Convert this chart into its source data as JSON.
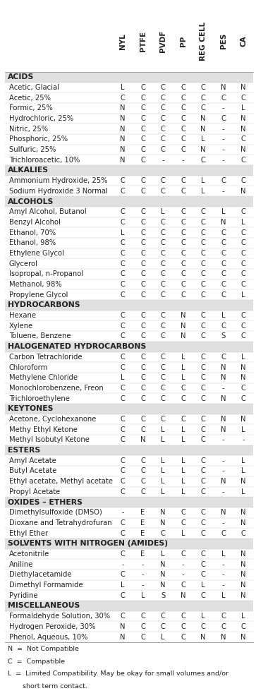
{
  "headers": [
    "NYL",
    "PTFE",
    "PVDF",
    "PP",
    "REG CELL",
    "PES",
    "CA"
  ],
  "sections": [
    {
      "title": "ACIDS",
      "rows": [
        [
          "Acetic, Glacial",
          "L",
          "C",
          "C",
          "C",
          "C",
          "N",
          "N"
        ],
        [
          "Acetic, 25%",
          "C",
          "C",
          "C",
          "C",
          "C",
          "C",
          "C"
        ],
        [
          "Formic, 25%",
          "N",
          "C",
          "C",
          "C",
          "C",
          "-",
          "L"
        ],
        [
          "Hydrochloric, 25%",
          "N",
          "C",
          "C",
          "C",
          "N",
          "C",
          "N"
        ],
        [
          "Nitric, 25%",
          "N",
          "C",
          "C",
          "C",
          "N",
          "-",
          "N"
        ],
        [
          "Phosphoric, 25%",
          "N",
          "C",
          "C",
          "C",
          "L",
          "-",
          "C"
        ],
        [
          "Sulfuric, 25%",
          "N",
          "C",
          "C",
          "C",
          "N",
          "-",
          "N"
        ],
        [
          "Trichloroacetic, 10%",
          "N",
          "C",
          "-",
          "-",
          "C",
          "-",
          "C"
        ]
      ]
    },
    {
      "title": "ALKALIES",
      "rows": [
        [
          "Ammonium Hydroxide, 25%",
          "C",
          "C",
          "C",
          "C",
          "L",
          "C",
          "C"
        ],
        [
          "Sodium Hydroxide 3 Normal",
          "C",
          "C",
          "C",
          "C",
          "L",
          "-",
          "N"
        ]
      ]
    },
    {
      "title": "ALCOHOLS",
      "rows": [
        [
          "Amyl Alcohol, Butanol",
          "C",
          "C",
          "L",
          "C",
          "C",
          "L",
          "C"
        ],
        [
          "Benzyl Alcohol",
          "C",
          "C",
          "C",
          "C",
          "C",
          "N",
          "L"
        ],
        [
          "Ethanol, 70%",
          "L",
          "C",
          "C",
          "C",
          "C",
          "C",
          "C"
        ],
        [
          "Ethanol, 98%",
          "C",
          "C",
          "C",
          "C",
          "C",
          "C",
          "C"
        ],
        [
          "Ethylene Glycol",
          "C",
          "C",
          "C",
          "C",
          "C",
          "C",
          "C"
        ],
        [
          "Glycerol",
          "C",
          "C",
          "C",
          "C",
          "C",
          "C",
          "C"
        ],
        [
          "Isopropal, n-Propanol",
          "C",
          "C",
          "C",
          "C",
          "C",
          "C",
          "C"
        ],
        [
          "Methanol, 98%",
          "C",
          "C",
          "C",
          "C",
          "C",
          "C",
          "C"
        ],
        [
          "Propylene Glycol",
          "C",
          "C",
          "C",
          "C",
          "C",
          "C",
          "L"
        ]
      ]
    },
    {
      "title": "HYDROCARBONS",
      "rows": [
        [
          "Hexane",
          "C",
          "C",
          "C",
          "N",
          "C",
          "L",
          "C"
        ],
        [
          "Xylene",
          "C",
          "C",
          "C",
          "N",
          "C",
          "C",
          "C"
        ],
        [
          "Toluene, Benzene",
          "C",
          "C",
          "C",
          "N",
          "C",
          "S",
          "C"
        ]
      ]
    },
    {
      "title": "HALOGENATED HYDROCARBONS",
      "rows": [
        [
          "Carbon Tetrachloride",
          "C",
          "C",
          "C",
          "L",
          "C",
          "C",
          "L"
        ],
        [
          "Chloroform",
          "C",
          "C",
          "C",
          "L",
          "C",
          "N",
          "N"
        ],
        [
          "Methylene Chloride",
          "L",
          "C",
          "C",
          "L",
          "C",
          "N",
          "N"
        ],
        [
          "Monochlorobenzene, Freon",
          "C",
          "C",
          "C",
          "C",
          "C",
          "-",
          "C"
        ],
        [
          "Trichloroethylene",
          "C",
          "C",
          "C",
          "C",
          "C",
          "N",
          "C"
        ]
      ]
    },
    {
      "title": "KEYTONES",
      "rows": [
        [
          "Acetone, Cyclohexanone",
          "C",
          "C",
          "C",
          "C",
          "C",
          "N",
          "N"
        ],
        [
          "Methy Ethyl Ketone",
          "C",
          "C",
          "L",
          "L",
          "C",
          "N",
          "L"
        ],
        [
          "Methyl Isobutyl Ketone",
          "C",
          "N",
          "L",
          "L",
          "C",
          "-",
          "-"
        ]
      ]
    },
    {
      "title": "ESTERS",
      "rows": [
        [
          "Amyl Acetate",
          "C",
          "C",
          "L",
          "L",
          "C",
          "-",
          "L"
        ],
        [
          "Butyl Acetate",
          "C",
          "C",
          "L",
          "L",
          "C",
          "-",
          "L"
        ],
        [
          "Ethyl acetate, Methyl acetate",
          "C",
          "C",
          "L",
          "L",
          "C",
          "N",
          "N"
        ],
        [
          "Propyl Acetate",
          "C",
          "C",
          "L",
          "L",
          "C",
          "-",
          "L"
        ]
      ]
    },
    {
      "title": "OXIDES – ETHERS",
      "rows": [
        [
          "Dimethylsulfoxide (DMSO)",
          "-",
          "E",
          "N",
          "C",
          "C",
          "N",
          "N"
        ],
        [
          "Dioxane and Tetrahydrofuran",
          "C",
          "E",
          "N",
          "C",
          "C",
          "-",
          "N"
        ],
        [
          "Ethyl Ether",
          "C",
          "E",
          "C",
          "L",
          "C",
          "C",
          "C"
        ]
      ]
    },
    {
      "title": "SOLVENTS WITH NITROGEN (AMIDES)",
      "rows": [
        [
          "Acetonitrile",
          "C",
          "E",
          "L",
          "C",
          "C",
          "L",
          "N"
        ],
        [
          "Aniline",
          "-",
          "-",
          "N",
          "-",
          "C",
          "-",
          "N"
        ],
        [
          "Diethylacetamide",
          "C",
          "-",
          "N",
          "-",
          "C",
          "-",
          "N"
        ],
        [
          "Dimethyl Formamide",
          "L",
          "-",
          "N",
          "C",
          "L",
          "-",
          "N"
        ],
        [
          "Pyridine",
          "C",
          "L",
          "S",
          "N",
          "C",
          "L",
          "N"
        ]
      ]
    },
    {
      "title": "MISCELLANEOUS",
      "rows": [
        [
          "Formaldehyde Solution, 30%",
          "C",
          "C",
          "C",
          "C",
          "L",
          "C",
          "L"
        ],
        [
          "Hydrogen Peroxide, 30%",
          "N",
          "C",
          "C",
          "C",
          "C",
          "C",
          "C"
        ],
        [
          "Phenol, Aqueous, 10%",
          "N",
          "C",
          "L",
          "C",
          "N",
          "N",
          "N"
        ]
      ]
    }
  ],
  "legend_lines": [
    "N  =  Not Compatible",
    "C  =  Compatible",
    "L  =  Limited Compatibility. May be okay for small volumes and/or",
    "       short term contact."
  ],
  "section_bg": "#e0e0e0",
  "row_bg": "#ffffff",
  "text_color": "#222222",
  "font_size": 7.2,
  "header_font_size": 7.5,
  "section_font_size": 7.8,
  "legend_font_size": 6.8
}
